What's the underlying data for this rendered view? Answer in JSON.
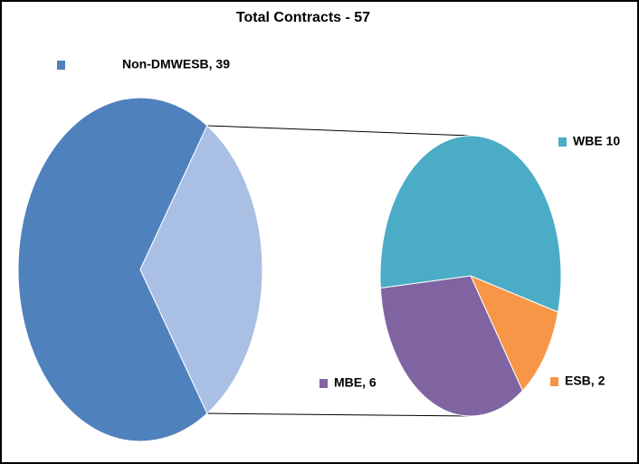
{
  "chart_data": {
    "type": "pie",
    "title": "Total Contracts - 57",
    "categories": [
      "Non-DMWESB",
      "WBE",
      "ESB",
      "MBE"
    ],
    "values": [
      39,
      10,
      2,
      6
    ],
    "value_labels": [
      "Non-DMWESB, 39",
      "WBE 10",
      "ESB, 2",
      "MBE, 6"
    ],
    "colors": [
      "#4f81bd",
      "#4bacc6",
      "#f79646",
      "#8064a2"
    ],
    "other_color": "#a9bfe4",
    "secondary_count": 3
  }
}
